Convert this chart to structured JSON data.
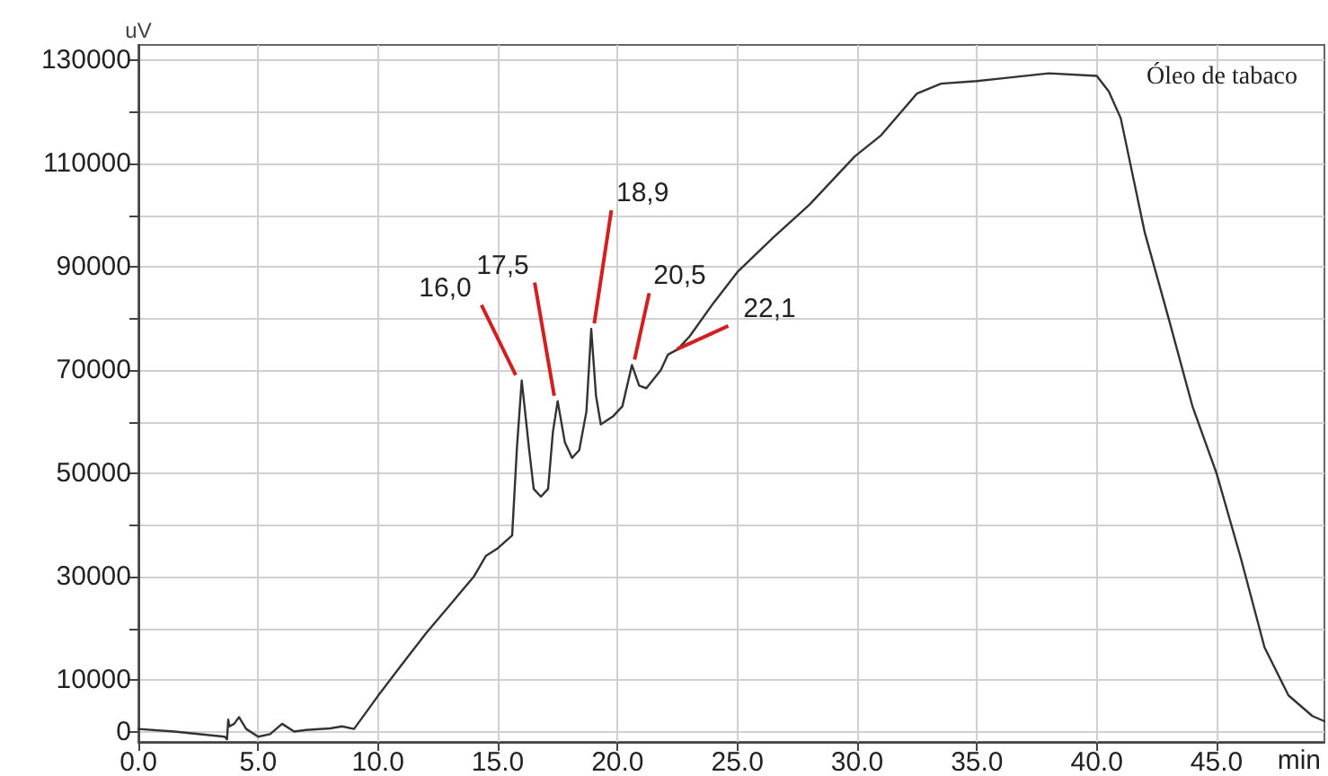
{
  "chart_data": {
    "type": "line",
    "title": "Óleo de tabaco",
    "xlabel": "min",
    "ylabel": "uV",
    "xlim": [
      0,
      49.5
    ],
    "xticks": [
      {
        "value": 0,
        "label": "0.0"
      },
      {
        "value": 5,
        "label": "5.0"
      },
      {
        "value": 10,
        "label": "10.0"
      },
      {
        "value": 15,
        "label": "15.0"
      },
      {
        "value": 20,
        "label": "20.0"
      },
      {
        "value": 25,
        "label": "25.0"
      },
      {
        "value": 30,
        "label": "30.0"
      },
      {
        "value": 35,
        "label": "35.0"
      },
      {
        "value": 40,
        "label": "40.0"
      },
      {
        "value": 45,
        "label": "45.0"
      }
    ],
    "ylim": [
      -2000,
      133000
    ],
    "yticks": [
      0,
      {
        "value": 10000,
        "label": "10000"
      },
      {
        "value": 20000,
        "label": null
      },
      30000,
      {
        "value": 40000,
        "label": null
      },
      50000,
      {
        "value": 60000,
        "label": null
      },
      70000,
      {
        "value": 80000,
        "label": null
      },
      90000,
      {
        "value": 100000,
        "label": null
      },
      110000,
      {
        "value": 120000,
        "label": null
      },
      130000
    ],
    "grid": true,
    "marker": "none",
    "line_style": "solid",
    "series": [
      {
        "color": "#333333",
        "x": [
          0,
          1.5,
          3.6,
          3.7,
          3.75,
          3.8,
          4.0,
          4.2,
          4.5,
          5.0,
          5.5,
          6.0,
          6.5,
          7.0,
          8.0,
          8.5,
          9.0,
          10.0,
          11.0,
          12.0,
          13.0,
          14.0,
          14.5,
          15.0,
          15.6,
          15.8,
          16.0,
          16.3,
          16.5,
          16.8,
          17.1,
          17.3,
          17.5,
          17.8,
          18.1,
          18.4,
          18.7,
          18.9,
          19.1,
          19.3,
          19.8,
          20.2,
          20.6,
          20.9,
          21.2,
          21.8,
          22.1,
          22.5,
          23.0,
          24.0,
          25.0,
          26.5,
          28.0,
          29.9,
          31.0,
          32.5,
          33.5,
          35.0,
          36.0,
          38.0,
          40.0,
          40.5,
          41.0,
          42.0,
          43.0,
          44.0,
          45.0,
          46.0,
          47.0,
          48.0,
          49.0,
          49.5
        ],
        "values": [
          500,
          0,
          -1000,
          -1500,
          2300,
          1000,
          1500,
          2800,
          500,
          -1000,
          -500,
          1500,
          0,
          300,
          600,
          1000,
          500,
          6900,
          13000,
          19000,
          24500,
          30000,
          34000,
          35500,
          38000,
          55000,
          68000,
          55000,
          47000,
          45500,
          47000,
          58000,
          64000,
          56000,
          53000,
          54500,
          62000,
          78000,
          65000,
          59500,
          61000,
          63000,
          71000,
          67000,
          66500,
          70000,
          73000,
          74000,
          76500,
          83000,
          89000,
          95700,
          102000,
          111400,
          115500,
          123600,
          125500,
          126000,
          126500,
          127500,
          127000,
          124000,
          118800,
          96700,
          80000,
          62900,
          50000,
          33800,
          16300,
          7000,
          3000,
          2000
        ]
      }
    ],
    "annotations": [
      {
        "text": "16,0",
        "x": 16.0,
        "y": 68000
      },
      {
        "text": "17,5",
        "x": 17.5,
        "y": 64000
      },
      {
        "text": "18,9",
        "x": 18.9,
        "y": 78000
      },
      {
        "text": "20,5",
        "x": 20.6,
        "y": 71000
      },
      {
        "text": "22,1",
        "x": 22.1,
        "y": 73000
      }
    ]
  }
}
